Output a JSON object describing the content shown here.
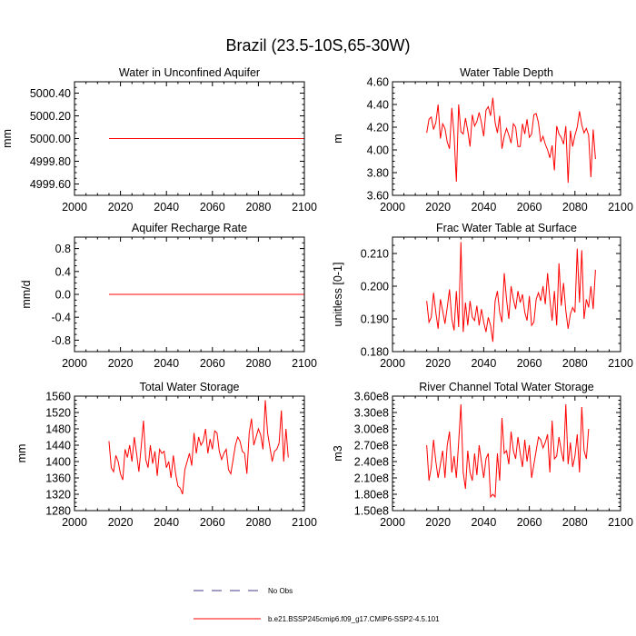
{
  "figure": {
    "title": "Brazil (23.5-10S,65-30W)",
    "line_color": "#ff0000",
    "obs_color": "#4b3a8c"
  },
  "legend": {
    "obs_label": "No Obs",
    "model_label": "b.e21.BSSP245cmip6.f09_g17.CMIP6-SSP2-4.5.101"
  },
  "chart_data": [
    {
      "type": "line",
      "title": "Water in Unconfined Aquifer",
      "ylabel": "mm",
      "xlim": [
        2000,
        2100
      ],
      "ylim": [
        4999.5,
        5000.5
      ],
      "xticks": [
        2000,
        2020,
        2040,
        2060,
        2080,
        2100
      ],
      "xtick_labels": [
        "2000",
        "2020",
        "2040",
        "2060",
        "2080",
        "2100"
      ],
      "yticks": [
        4999.6,
        4999.8,
        5000.0,
        5000.2,
        5000.4
      ],
      "ytick_labels": [
        "4999.60",
        "4999.80",
        "5000.00",
        "5000.20",
        "5000.40"
      ],
      "x_start": 2015,
      "series": [
        {
          "name": "b.e21.BSSP245cmip6.f09_g17.CMIP6-SSP2-4.5.101",
          "values": [
            5000,
            5000,
            5000,
            5000,
            5000,
            5000,
            5000,
            5000,
            5000,
            5000,
            5000,
            5000,
            5000,
            5000,
            5000,
            5000,
            5000,
            5000,
            5000,
            5000,
            5000,
            5000,
            5000,
            5000,
            5000,
            5000,
            5000,
            5000,
            5000,
            5000,
            5000,
            5000,
            5000,
            5000,
            5000,
            5000,
            5000,
            5000,
            5000,
            5000,
            5000,
            5000,
            5000,
            5000,
            5000,
            5000,
            5000,
            5000,
            5000,
            5000,
            5000,
            5000,
            5000,
            5000,
            5000,
            5000,
            5000,
            5000,
            5000,
            5000,
            5000,
            5000,
            5000,
            5000,
            5000,
            5000,
            5000,
            5000,
            5000,
            5000,
            5000,
            5000,
            5000,
            5000,
            5000,
            5000,
            5000,
            5000,
            5000,
            5000,
            5000,
            5000,
            5000,
            5000,
            5000,
            5000
          ]
        }
      ]
    },
    {
      "type": "line",
      "title": "Water Table Depth",
      "ylabel": "m",
      "xlim": [
        2000,
        2100
      ],
      "ylim": [
        3.6,
        4.6
      ],
      "xticks": [
        2000,
        2020,
        2040,
        2060,
        2080,
        2100
      ],
      "xtick_labels": [
        "2000",
        "2020",
        "2040",
        "2060",
        "2080",
        "2100"
      ],
      "yticks": [
        3.6,
        3.8,
        4.0,
        4.2,
        4.4,
        4.6
      ],
      "ytick_labels": [
        "3.60",
        "3.80",
        "4.00",
        "4.20",
        "4.40",
        "4.60"
      ],
      "x_start": 2015,
      "series": [
        {
          "name": "b.e21.BSSP245cmip6.f09_g17.CMIP6-SSP2-4.5.101",
          "values": [
            4.15,
            4.27,
            4.29,
            4.18,
            4.24,
            4.4,
            4.1,
            4.23,
            4.19,
            4.07,
            4.01,
            4.37,
            4.13,
            3.72,
            4.4,
            4.16,
            4.14,
            4.28,
            4.17,
            4.03,
            4.31,
            4.21,
            4.25,
            4.33,
            4.24,
            4.12,
            4.35,
            4.38,
            4.3,
            4.46,
            4.24,
            4.15,
            4.3,
            4.01,
            4.12,
            4.19,
            4.13,
            4.06,
            4.23,
            4.2,
            4.03,
            4.03,
            4.23,
            4.14,
            4.27,
            4.11,
            4.14,
            4.31,
            4.32,
            4.24,
            4.07,
            4.12,
            4.05,
            4.0,
            3.93,
            4.04,
            3.82,
            4.21,
            4.14,
            4.11,
            4.05,
            4.21,
            3.71,
            4.17,
            4.03,
            4.13,
            4.2,
            4.34,
            4.22,
            4.15,
            4.19,
            4.13,
            3.76,
            4.18,
            3.92
          ]
        }
      ]
    },
    {
      "type": "line",
      "title": "Aquifer Recharge Rate",
      "ylabel": "mm/d",
      "xlim": [
        2000,
        2100
      ],
      "ylim": [
        -1.0,
        1.0
      ],
      "xticks": [
        2000,
        2020,
        2040,
        2060,
        2080,
        2100
      ],
      "xtick_labels": [
        "2000",
        "2020",
        "2040",
        "2060",
        "2080",
        "2100"
      ],
      "yticks": [
        -0.8,
        -0.4,
        0.0,
        0.4,
        0.8
      ],
      "ytick_labels": [
        "-0.8",
        "-0.4",
        "0.0",
        "0.4",
        "0.8"
      ],
      "x_start": 2015,
      "series": [
        {
          "name": "b.e21.BSSP245cmip6.f09_g17.CMIP6-SSP2-4.5.101",
          "values": [
            0,
            0,
            0,
            0,
            0,
            0,
            0,
            0,
            0,
            0,
            0,
            0,
            0,
            0,
            0,
            0,
            0,
            0,
            0,
            0,
            0,
            0,
            0,
            0,
            0,
            0,
            0,
            0,
            0,
            0,
            0,
            0,
            0,
            0,
            0,
            0,
            0,
            0,
            0,
            0,
            0,
            0,
            0,
            0,
            0,
            0,
            0,
            0,
            0,
            0,
            0,
            0,
            0,
            0,
            0,
            0,
            0,
            0,
            0,
            0,
            0,
            0,
            0,
            0,
            0,
            0,
            0,
            0,
            0,
            0,
            0,
            0,
            0,
            0,
            0,
            0,
            0,
            0,
            0,
            0,
            0,
            0,
            0,
            0,
            0,
            0
          ]
        }
      ]
    },
    {
      "type": "line",
      "title": "Frac Water Table at Surface",
      "ylabel": "unitless [0-1]",
      "xlim": [
        2000,
        2100
      ],
      "ylim": [
        0.18,
        0.215
      ],
      "xticks": [
        2000,
        2020,
        2040,
        2060,
        2080,
        2100
      ],
      "xtick_labels": [
        "2000",
        "2020",
        "2040",
        "2060",
        "2080",
        "2100"
      ],
      "yticks": [
        0.18,
        0.19,
        0.2,
        0.21
      ],
      "ytick_labels": [
        "0.180",
        "0.190",
        "0.200",
        "0.210"
      ],
      "x_start": 2015,
      "series": [
        {
          "name": "b.e21.BSSP245cmip6.f09_g17.CMIP6-SSP2-4.5.101",
          "values": [
            0.1955,
            0.189,
            0.1905,
            0.198,
            0.192,
            0.187,
            0.196,
            0.1925,
            0.1885,
            0.1935,
            0.199,
            0.19,
            0.1865,
            0.1985,
            0.1875,
            0.2135,
            0.186,
            0.195,
            0.188,
            0.1955,
            0.1905,
            0.1895,
            0.194,
            0.188,
            0.193,
            0.189,
            0.186,
            0.1905,
            0.188,
            0.183,
            0.1955,
            0.1985,
            0.192,
            0.189,
            0.204,
            0.196,
            0.19,
            0.2,
            0.196,
            0.193,
            0.1985,
            0.195,
            0.1975,
            0.192,
            0.1895,
            0.197,
            0.188,
            0.189,
            0.196,
            0.198,
            0.1955,
            0.2,
            0.1945,
            0.204,
            0.196,
            0.1895,
            0.1985,
            0.188,
            0.207,
            0.194,
            0.201,
            0.1925,
            0.187,
            0.1915,
            0.1935,
            0.192,
            0.2115,
            0.195,
            0.211,
            0.19,
            0.196,
            0.1935,
            0.2,
            0.193,
            0.205
          ]
        }
      ]
    },
    {
      "type": "line",
      "title": "Total Water Storage",
      "ylabel": "mm",
      "xlim": [
        2000,
        2100
      ],
      "ylim": [
        1280,
        1560
      ],
      "xticks": [
        2000,
        2020,
        2040,
        2060,
        2080,
        2100
      ],
      "xtick_labels": [
        "2000",
        "2020",
        "2040",
        "2060",
        "2080",
        "2100"
      ],
      "yticks": [
        1280,
        1320,
        1360,
        1400,
        1440,
        1480,
        1520,
        1560
      ],
      "ytick_labels": [
        "1280",
        "1320",
        "1360",
        "1400",
        "1440",
        "1480",
        "1520",
        "1560"
      ],
      "x_start": 2015,
      "series": [
        {
          "name": "b.e21.BSSP245cmip6.f09_g17.CMIP6-SSP2-4.5.101",
          "values": [
            1450,
            1385,
            1375,
            1415,
            1400,
            1370,
            1355,
            1430,
            1410,
            1440,
            1400,
            1460,
            1420,
            1375,
            1435,
            1500,
            1405,
            1385,
            1440,
            1395,
            1425,
            1365,
            1430,
            1420,
            1425,
            1385,
            1400,
            1360,
            1415,
            1370,
            1340,
            1335,
            1320,
            1380,
            1400,
            1420,
            1390,
            1470,
            1420,
            1460,
            1440,
            1450,
            1480,
            1420,
            1455,
            1430,
            1475,
            1470,
            1425,
            1405,
            1420,
            1430,
            1380,
            1370,
            1405,
            1440,
            1460,
            1450,
            1425,
            1420,
            1370,
            1470,
            1505,
            1440,
            1460,
            1480,
            1465,
            1430,
            1550,
            1470,
            1435,
            1400,
            1425,
            1430,
            1445,
            1525,
            1400,
            1480,
            1410
          ]
        }
      ]
    },
    {
      "type": "line",
      "title": "River Channel Total Water Storage",
      "ylabel": "m3",
      "xlim": [
        2000,
        2100
      ],
      "ylim": [
        150000000.0,
        360000000.0
      ],
      "xticks": [
        2000,
        2020,
        2040,
        2060,
        2080,
        2100
      ],
      "xtick_labels": [
        "2000",
        "2020",
        "2040",
        "2060",
        "2080",
        "2100"
      ],
      "yticks": [
        150000000.0,
        180000000.0,
        210000000.0,
        240000000.0,
        270000000.0,
        300000000.0,
        330000000.0,
        360000000.0
      ],
      "ytick_labels": [
        "1.50e8",
        "1.80e8",
        "2.10e8",
        "2.40e8",
        "2.70e8",
        "3.00e8",
        "3.30e8",
        "3.60e8"
      ],
      "x_start": 2015,
      "series": [
        {
          "name": "b.e21.BSSP245cmip6.f09_g17.CMIP6-SSP2-4.5.101",
          "values": [
            270000000.0,
            205000000.0,
            230000000.0,
            280000000.0,
            240000000.0,
            210000000.0,
            235000000.0,
            260000000.0,
            210000000.0,
            270000000.0,
            295000000.0,
            220000000.0,
            250000000.0,
            210000000.0,
            275000000.0,
            345000000.0,
            220000000.0,
            190000000.0,
            260000000.0,
            220000000.0,
            205000000.0,
            255000000.0,
            215000000.0,
            270000000.0,
            240000000.0,
            210000000.0,
            245000000.0,
            255000000.0,
            175000000.0,
            180000000.0,
            175000000.0,
            255000000.0,
            205000000.0,
            320000000.0,
            255000000.0,
            260000000.0,
            235000000.0,
            295000000.0,
            260000000.0,
            245000000.0,
            285000000.0,
            255000000.0,
            230000000.0,
            280000000.0,
            240000000.0,
            270000000.0,
            210000000.0,
            235000000.0,
            260000000.0,
            285000000.0,
            280000000.0,
            265000000.0,
            275000000.0,
            290000000.0,
            220000000.0,
            315000000.0,
            245000000.0,
            250000000.0,
            285000000.0,
            260000000.0,
            240000000.0,
            345000000.0,
            235000000.0,
            275000000.0,
            230000000.0,
            250000000.0,
            290000000.0,
            220000000.0,
            340000000.0,
            260000000.0,
            245000000.0,
            300000000.0
          ]
        }
      ]
    }
  ]
}
